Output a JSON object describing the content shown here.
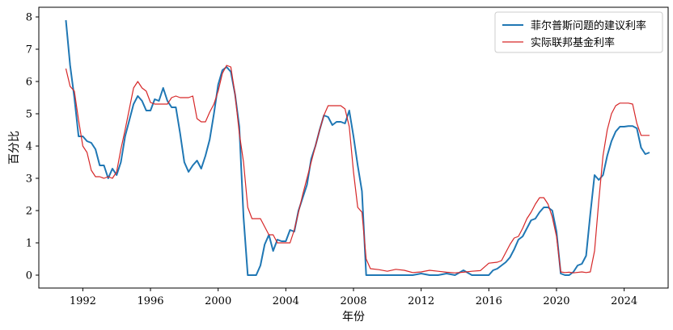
{
  "chart_data": {
    "type": "line",
    "title": "",
    "xlabel": "年份",
    "ylabel": "百分比",
    "xlim": [
      1989.4,
      2026.6
    ],
    "ylim": [
      -0.4,
      8.3
    ],
    "xticks": [
      1992,
      1996,
      2000,
      2004,
      2008,
      2012,
      2016,
      2020,
      2024
    ],
    "yticks": [
      0,
      1,
      2,
      3,
      4,
      5,
      6,
      7,
      8
    ],
    "grid": false,
    "legend": "top-right",
    "series": [
      {
        "name": "菲尔普斯问题的建议利率",
        "color": "#1f77b4",
        "points": [
          [
            1991.0,
            7.9
          ],
          [
            1991.25,
            6.5
          ],
          [
            1991.5,
            5.5
          ],
          [
            1991.75,
            4.3
          ],
          [
            1992.0,
            4.3
          ],
          [
            1992.25,
            4.15
          ],
          [
            1992.5,
            4.1
          ],
          [
            1992.75,
            3.9
          ],
          [
            1993.0,
            3.4
          ],
          [
            1993.25,
            3.4
          ],
          [
            1993.5,
            3.0
          ],
          [
            1993.75,
            3.3
          ],
          [
            1994.0,
            3.1
          ],
          [
            1994.25,
            3.5
          ],
          [
            1994.5,
            4.3
          ],
          [
            1994.75,
            4.8
          ],
          [
            1995.0,
            5.3
          ],
          [
            1995.25,
            5.55
          ],
          [
            1995.5,
            5.4
          ],
          [
            1995.75,
            5.1
          ],
          [
            1996.0,
            5.1
          ],
          [
            1996.25,
            5.45
          ],
          [
            1996.5,
            5.4
          ],
          [
            1996.75,
            5.8
          ],
          [
            1997.0,
            5.4
          ],
          [
            1997.25,
            5.2
          ],
          [
            1997.5,
            5.2
          ],
          [
            1997.75,
            4.4
          ],
          [
            1998.0,
            3.5
          ],
          [
            1998.25,
            3.2
          ],
          [
            1998.5,
            3.4
          ],
          [
            1998.75,
            3.55
          ],
          [
            1999.0,
            3.3
          ],
          [
            1999.25,
            3.7
          ],
          [
            1999.5,
            4.2
          ],
          [
            1999.75,
            5.0
          ],
          [
            2000.0,
            5.9
          ],
          [
            2000.25,
            6.35
          ],
          [
            2000.5,
            6.45
          ],
          [
            2000.75,
            6.3
          ],
          [
            2001.0,
            5.6
          ],
          [
            2001.25,
            4.6
          ],
          [
            2001.5,
            1.8
          ],
          [
            2001.75,
            0.0
          ],
          [
            2002.0,
            0.0
          ],
          [
            2002.25,
            0.0
          ],
          [
            2002.5,
            0.3
          ],
          [
            2002.75,
            0.95
          ],
          [
            2003.0,
            1.25
          ],
          [
            2003.25,
            0.75
          ],
          [
            2003.5,
            1.1
          ],
          [
            2003.75,
            1.05
          ],
          [
            2004.0,
            1.05
          ],
          [
            2004.25,
            1.4
          ],
          [
            2004.5,
            1.35
          ],
          [
            2004.75,
            2.0
          ],
          [
            2005.0,
            2.4
          ],
          [
            2005.25,
            2.8
          ],
          [
            2005.5,
            3.6
          ],
          [
            2005.75,
            4.0
          ],
          [
            2006.0,
            4.5
          ],
          [
            2006.25,
            4.95
          ],
          [
            2006.5,
            4.9
          ],
          [
            2006.75,
            4.65
          ],
          [
            2007.0,
            4.75
          ],
          [
            2007.25,
            4.75
          ],
          [
            2007.5,
            4.7
          ],
          [
            2007.75,
            5.1
          ],
          [
            2008.0,
            4.3
          ],
          [
            2008.25,
            3.4
          ],
          [
            2008.5,
            2.6
          ],
          [
            2008.75,
            0.0
          ],
          [
            2009.0,
            0.0
          ],
          [
            2009.5,
            0.0
          ],
          [
            2010.0,
            0.0
          ],
          [
            2010.5,
            0.0
          ],
          [
            2011.0,
            0.0
          ],
          [
            2011.5,
            0.0
          ],
          [
            2012.0,
            0.05
          ],
          [
            2012.5,
            0.0
          ],
          [
            2013.0,
            0.0
          ],
          [
            2013.5,
            0.05
          ],
          [
            2014.0,
            0.0
          ],
          [
            2014.5,
            0.15
          ],
          [
            2015.0,
            0.0
          ],
          [
            2015.5,
            0.0
          ],
          [
            2016.0,
            0.0
          ],
          [
            2016.25,
            0.15
          ],
          [
            2016.5,
            0.2
          ],
          [
            2016.75,
            0.3
          ],
          [
            2017.0,
            0.4
          ],
          [
            2017.25,
            0.55
          ],
          [
            2017.5,
            0.8
          ],
          [
            2017.75,
            1.1
          ],
          [
            2018.0,
            1.2
          ],
          [
            2018.25,
            1.45
          ],
          [
            2018.5,
            1.7
          ],
          [
            2018.75,
            1.75
          ],
          [
            2019.0,
            1.95
          ],
          [
            2019.25,
            2.1
          ],
          [
            2019.5,
            2.1
          ],
          [
            2019.75,
            2.0
          ],
          [
            2020.0,
            1.35
          ],
          [
            2020.25,
            0.05
          ],
          [
            2020.5,
            0.0
          ],
          [
            2020.75,
            0.0
          ],
          [
            2021.0,
            0.1
          ],
          [
            2021.25,
            0.3
          ],
          [
            2021.5,
            0.35
          ],
          [
            2021.75,
            0.6
          ],
          [
            2022.0,
            1.9
          ],
          [
            2022.25,
            3.1
          ],
          [
            2022.5,
            2.95
          ],
          [
            2022.75,
            3.1
          ],
          [
            2023.0,
            3.7
          ],
          [
            2023.25,
            4.15
          ],
          [
            2023.5,
            4.45
          ],
          [
            2023.75,
            4.6
          ],
          [
            2024.0,
            4.6
          ],
          [
            2024.25,
            4.62
          ],
          [
            2024.5,
            4.62
          ],
          [
            2024.75,
            4.55
          ],
          [
            2025.0,
            3.95
          ],
          [
            2025.25,
            3.75
          ],
          [
            2025.5,
            3.8
          ]
        ]
      },
      {
        "name": "实际联邦基金利率",
        "color": "#d62728",
        "points": [
          [
            1991.0,
            6.4
          ],
          [
            1991.25,
            5.85
          ],
          [
            1991.5,
            5.7
          ],
          [
            1991.75,
            4.8
          ],
          [
            1992.0,
            4.0
          ],
          [
            1992.25,
            3.8
          ],
          [
            1992.5,
            3.25
          ],
          [
            1992.75,
            3.05
          ],
          [
            1993.0,
            3.05
          ],
          [
            1993.25,
            3.0
          ],
          [
            1993.5,
            3.05
          ],
          [
            1993.75,
            3.0
          ],
          [
            1994.0,
            3.2
          ],
          [
            1994.25,
            3.9
          ],
          [
            1994.5,
            4.5
          ],
          [
            1994.75,
            5.15
          ],
          [
            1995.0,
            5.8
          ],
          [
            1995.25,
            6.0
          ],
          [
            1995.5,
            5.8
          ],
          [
            1995.75,
            5.7
          ],
          [
            1996.0,
            5.35
          ],
          [
            1996.25,
            5.3
          ],
          [
            1996.5,
            5.3
          ],
          [
            1996.75,
            5.3
          ],
          [
            1997.0,
            5.3
          ],
          [
            1997.25,
            5.5
          ],
          [
            1997.5,
            5.55
          ],
          [
            1997.75,
            5.5
          ],
          [
            1998.0,
            5.5
          ],
          [
            1998.25,
            5.5
          ],
          [
            1998.5,
            5.55
          ],
          [
            1998.75,
            4.85
          ],
          [
            1999.0,
            4.75
          ],
          [
            1999.25,
            4.75
          ],
          [
            1999.5,
            5.05
          ],
          [
            1999.75,
            5.3
          ],
          [
            2000.0,
            5.7
          ],
          [
            2000.25,
            6.25
          ],
          [
            2000.5,
            6.5
          ],
          [
            2000.75,
            6.45
          ],
          [
            2001.0,
            5.6
          ],
          [
            2001.25,
            4.4
          ],
          [
            2001.5,
            3.5
          ],
          [
            2001.75,
            2.1
          ],
          [
            2002.0,
            1.75
          ],
          [
            2002.5,
            1.75
          ],
          [
            2002.75,
            1.5
          ],
          [
            2003.0,
            1.25
          ],
          [
            2003.25,
            1.25
          ],
          [
            2003.5,
            1.0
          ],
          [
            2003.75,
            1.0
          ],
          [
            2004.0,
            1.0
          ],
          [
            2004.25,
            1.0
          ],
          [
            2004.5,
            1.4
          ],
          [
            2004.75,
            1.95
          ],
          [
            2005.0,
            2.5
          ],
          [
            2005.25,
            3.0
          ],
          [
            2005.5,
            3.5
          ],
          [
            2005.75,
            4.0
          ],
          [
            2006.0,
            4.5
          ],
          [
            2006.25,
            4.95
          ],
          [
            2006.5,
            5.25
          ],
          [
            2006.75,
            5.25
          ],
          [
            2007.0,
            5.25
          ],
          [
            2007.25,
            5.25
          ],
          [
            2007.5,
            5.15
          ],
          [
            2007.75,
            4.6
          ],
          [
            2008.0,
            3.2
          ],
          [
            2008.25,
            2.1
          ],
          [
            2008.5,
            1.95
          ],
          [
            2008.75,
            0.5
          ],
          [
            2009.0,
            0.2
          ],
          [
            2009.5,
            0.17
          ],
          [
            2010.0,
            0.12
          ],
          [
            2010.5,
            0.18
          ],
          [
            2011.0,
            0.15
          ],
          [
            2011.5,
            0.08
          ],
          [
            2012.0,
            0.1
          ],
          [
            2012.5,
            0.15
          ],
          [
            2013.0,
            0.12
          ],
          [
            2013.5,
            0.09
          ],
          [
            2014.0,
            0.07
          ],
          [
            2014.5,
            0.09
          ],
          [
            2015.0,
            0.12
          ],
          [
            2015.5,
            0.14
          ],
          [
            2016.0,
            0.37
          ],
          [
            2016.5,
            0.4
          ],
          [
            2016.75,
            0.45
          ],
          [
            2017.0,
            0.7
          ],
          [
            2017.25,
            0.95
          ],
          [
            2017.5,
            1.15
          ],
          [
            2017.75,
            1.2
          ],
          [
            2018.0,
            1.45
          ],
          [
            2018.25,
            1.75
          ],
          [
            2018.5,
            1.95
          ],
          [
            2018.75,
            2.2
          ],
          [
            2019.0,
            2.4
          ],
          [
            2019.25,
            2.4
          ],
          [
            2019.5,
            2.2
          ],
          [
            2019.75,
            1.8
          ],
          [
            2020.0,
            1.2
          ],
          [
            2020.25,
            0.1
          ],
          [
            2020.5,
            0.08
          ],
          [
            2020.75,
            0.09
          ],
          [
            2021.0,
            0.07
          ],
          [
            2021.5,
            0.1
          ],
          [
            2021.75,
            0.08
          ],
          [
            2022.0,
            0.1
          ],
          [
            2022.25,
            0.75
          ],
          [
            2022.5,
            2.3
          ],
          [
            2022.75,
            3.7
          ],
          [
            2023.0,
            4.5
          ],
          [
            2023.25,
            5.0
          ],
          [
            2023.5,
            5.25
          ],
          [
            2023.75,
            5.33
          ],
          [
            2024.0,
            5.33
          ],
          [
            2024.25,
            5.33
          ],
          [
            2024.5,
            5.3
          ],
          [
            2024.75,
            4.7
          ],
          [
            2025.0,
            4.33
          ],
          [
            2025.25,
            4.33
          ],
          [
            2025.5,
            4.33
          ]
        ]
      }
    ]
  }
}
